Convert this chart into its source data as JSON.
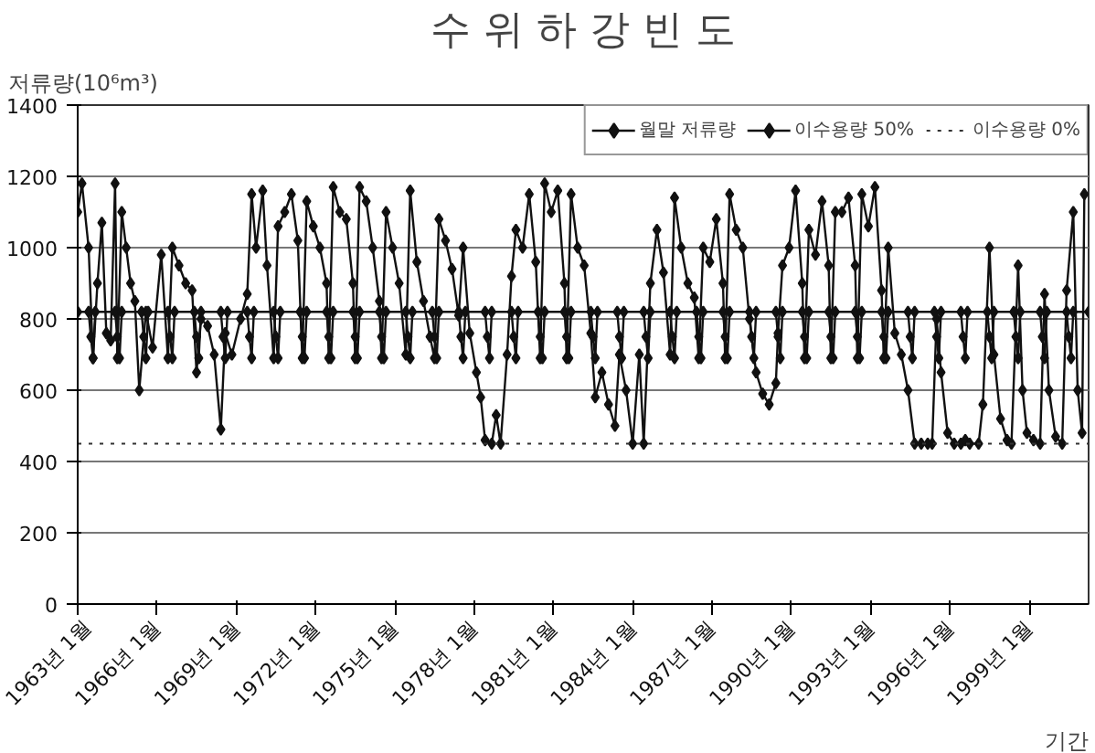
{
  "chart_data": {
    "type": "line",
    "title": "수 위 하 강 빈 도",
    "ylabel": "저류량(10⁶m³)",
    "xlabel": "기간",
    "xlim": [
      "1963-01",
      "2001-04"
    ],
    "xticks": [
      {
        "value": "1963-01",
        "label": "1963년 1월"
      },
      {
        "value": "1966-01",
        "label": "1966년 1월"
      },
      {
        "value": "1969-01",
        "label": "1969년 1월"
      },
      {
        "value": "1972-01",
        "label": "1972년 1월"
      },
      {
        "value": "1975-01",
        "label": "1975년 1월"
      },
      {
        "value": "1978-01",
        "label": "1978년 1월"
      },
      {
        "value": "1981-01",
        "label": "1981년 1월"
      },
      {
        "value": "1984-01",
        "label": "1984년 1월"
      },
      {
        "value": "1987-01",
        "label": "1987년 1월"
      },
      {
        "value": "1990-01",
        "label": "1990년 1월"
      },
      {
        "value": "1993-01",
        "label": "1993년 1월"
      },
      {
        "value": "1996-01",
        "label": "1996년 1월"
      },
      {
        "value": "1999-01",
        "label": "1999년 1월"
      }
    ],
    "ylim": [
      0,
      1400
    ],
    "yticks": [
      0,
      200,
      400,
      600,
      800,
      1000,
      1200,
      1400
    ],
    "grid": "y",
    "legend": "top right",
    "series": [
      {
        "name": "월말 저류량",
        "color": "#111111",
        "marker": "diamond",
        "line_style": "solid",
        "x": [
          "1963-01",
          "1963-03",
          "1963-06",
          "1963-08",
          "1963-10",
          "1963-12",
          "1964-02",
          "1964-04",
          "1964-06",
          "1964-07",
          "1964-09",
          "1964-11",
          "1965-01",
          "1965-03",
          "1965-05",
          "1965-08",
          "1965-11",
          "1966-03",
          "1966-06",
          "1966-08",
          "1966-11",
          "1967-02",
          "1967-05",
          "1967-07",
          "1967-09",
          "1967-12",
          "1968-03",
          "1968-06",
          "1968-08",
          "1968-11",
          "1969-03",
          "1969-06",
          "1969-08",
          "1969-10",
          "1970-01",
          "1970-03",
          "1970-06",
          "1970-08",
          "1970-11",
          "1971-02",
          "1971-05",
          "1971-07",
          "1971-09",
          "1971-12",
          "1972-03",
          "1972-06",
          "1972-07",
          "1972-09",
          "1972-12",
          "1973-03",
          "1973-06",
          "1973-07",
          "1973-09",
          "1973-12",
          "1974-03",
          "1974-06",
          "1974-07",
          "1974-09",
          "1974-12",
          "1975-03",
          "1975-06",
          "1975-08",
          "1975-11",
          "1976-02",
          "1976-05",
          "1976-07",
          "1976-09",
          "1976-12",
          "1977-03",
          "1977-06",
          "1977-08",
          "1977-11",
          "1978-02",
          "1978-04",
          "1978-06",
          "1978-09",
          "1978-11",
          "1979-01",
          "1979-04",
          "1979-06",
          "1979-08",
          "1979-11",
          "1980-02",
          "1980-05",
          "1980-07",
          "1980-09",
          "1980-12",
          "1981-03",
          "1981-06",
          "1981-07",
          "1981-09",
          "1981-12",
          "1982-03",
          "1982-06",
          "1982-08",
          "1982-11",
          "1983-02",
          "1983-05",
          "1983-07",
          "1983-10",
          "1984-01",
          "1984-04",
          "1984-06",
          "1984-09",
          "1984-12",
          "1985-03",
          "1985-06",
          "1985-08",
          "1985-11",
          "1986-02",
          "1986-05",
          "1986-07",
          "1986-09",
          "1986-12",
          "1987-03",
          "1987-06",
          "1987-07",
          "1987-09",
          "1987-12",
          "1988-03",
          "1988-06",
          "1988-09",
          "1988-12",
          "1989-03",
          "1989-06",
          "1989-07",
          "1989-09",
          "1989-12",
          "1990-03",
          "1990-06",
          "1990-07",
          "1990-09",
          "1990-12",
          "1991-03",
          "1991-06",
          "1991-07",
          "1991-09",
          "1991-12",
          "1992-03",
          "1992-06",
          "1992-07",
          "1992-09",
          "1992-12",
          "1993-03",
          "1993-06",
          "1993-07",
          "1993-09",
          "1993-12",
          "1994-03",
          "1994-06",
          "1994-09",
          "1994-12",
          "1995-03",
          "1995-05",
          "1995-07",
          "1995-09",
          "1995-12",
          "1996-03",
          "1996-06",
          "1996-08",
          "1996-10",
          "1997-02",
          "1997-04",
          "1997-07",
          "1997-09",
          "1997-12",
          "1998-03",
          "1998-05",
          "1998-08",
          "1998-10",
          "1998-12",
          "1999-03",
          "1999-06",
          "1999-08",
          "1999-10",
          "2000-01",
          "2000-04",
          "2000-06",
          "2000-09",
          "2000-11",
          "2001-01",
          "2001-02"
        ],
        "values": [
          1100,
          1180,
          1000,
          690,
          900,
          1070,
          760,
          740,
          1180,
          690,
          1100,
          1000,
          900,
          850,
          600,
          820,
          720,
          980,
          690,
          1000,
          950,
          900,
          880,
          650,
          800,
          780,
          700,
          490,
          760,
          700,
          800,
          870,
          1150,
          1000,
          1160,
          950,
          690,
          1060,
          1100,
          1150,
          1020,
          690,
          1130,
          1060,
          1000,
          900,
          690,
          1170,
          1100,
          1080,
          900,
          690,
          1170,
          1130,
          1000,
          850,
          690,
          1100,
          1000,
          900,
          700,
          1160,
          960,
          850,
          750,
          690,
          1080,
          1020,
          940,
          810,
          1000,
          760,
          650,
          580,
          460,
          450,
          530,
          450,
          700,
          920,
          1050,
          1000,
          1150,
          960,
          690,
          1180,
          1100,
          1160,
          900,
          690,
          1150,
          1000,
          950,
          760,
          580,
          650,
          560,
          500,
          700,
          600,
          450,
          700,
          450,
          900,
          1050,
          930,
          700,
          1140,
          1000,
          900,
          860,
          690,
          1000,
          960,
          1080,
          900,
          690,
          1150,
          1050,
          1000,
          800,
          650,
          590,
          560,
          620,
          760,
          950,
          1000,
          1160,
          900,
          690,
          1050,
          980,
          1130,
          950,
          690,
          1100,
          1100,
          1140,
          950,
          690,
          1150,
          1060,
          1170,
          880,
          690,
          1000,
          760,
          700,
          600,
          450,
          450,
          450,
          450,
          800,
          650,
          480,
          450,
          450,
          460,
          450,
          450,
          560,
          1000,
          700,
          520,
          460,
          450,
          950,
          600,
          480,
          460,
          450,
          870,
          600,
          470,
          450,
          880,
          1100,
          600,
          480,
          1150
        ]
      },
      {
        "name": "이수용량 50%",
        "color": "#111111",
        "marker": "diamond",
        "line_style": "solid",
        "x": [
          "1963-01",
          "1963-06",
          "1963-07",
          "1963-08",
          "1963-09",
          "1964-06",
          "1964-07",
          "1964-08",
          "1964-09",
          "1965-06",
          "1965-07",
          "1965-08",
          "1965-09",
          "1966-06",
          "1966-07",
          "1966-08",
          "1966-09",
          "1967-06",
          "1967-07",
          "1967-08",
          "1967-09",
          "1968-06",
          "1968-07",
          "1968-08",
          "1968-09",
          "1969-06",
          "1969-07",
          "1969-08",
          "1969-09",
          "1970-06",
          "1970-07",
          "1970-08",
          "1970-09",
          "1971-06",
          "1971-07",
          "1971-08",
          "1971-09",
          "1972-06",
          "1972-07",
          "1972-08",
          "1972-09",
          "1973-06",
          "1973-07",
          "1973-08",
          "1973-09",
          "1974-06",
          "1974-07",
          "1974-08",
          "1974-09",
          "1975-06",
          "1975-07",
          "1975-08",
          "1975-09",
          "1976-06",
          "1976-07",
          "1976-08",
          "1976-09",
          "1977-06",
          "1977-07",
          "1977-08",
          "1977-09",
          "1978-06",
          "1978-07",
          "1978-08",
          "1978-09",
          "1979-06",
          "1979-07",
          "1979-08",
          "1979-09",
          "1980-06",
          "1980-07",
          "1980-08",
          "1980-09",
          "1981-06",
          "1981-07",
          "1981-08",
          "1981-09",
          "1982-06",
          "1982-07",
          "1982-08",
          "1982-09",
          "1983-06",
          "1983-07",
          "1983-08",
          "1983-09",
          "1984-06",
          "1984-07",
          "1984-08",
          "1984-09",
          "1985-06",
          "1985-07",
          "1985-08",
          "1985-09",
          "1986-06",
          "1986-07",
          "1986-08",
          "1986-09",
          "1987-06",
          "1987-07",
          "1987-08",
          "1987-09",
          "1988-06",
          "1988-07",
          "1988-08",
          "1988-09",
          "1989-06",
          "1989-07",
          "1989-08",
          "1989-09",
          "1990-06",
          "1990-07",
          "1990-08",
          "1990-09",
          "1991-06",
          "1991-07",
          "1991-08",
          "1991-09",
          "1992-06",
          "1992-07",
          "1992-08",
          "1992-09",
          "1993-06",
          "1993-07",
          "1993-08",
          "1993-09",
          "1994-06",
          "1994-07",
          "1994-08",
          "1994-09",
          "1995-06",
          "1995-07",
          "1995-08",
          "1995-09",
          "1996-06",
          "1996-07",
          "1996-08",
          "1996-09",
          "1997-06",
          "1997-07",
          "1997-08",
          "1997-09",
          "1998-06",
          "1998-07",
          "1998-08",
          "1998-09",
          "1999-06",
          "1999-07",
          "1999-08",
          "1999-09",
          "2000-06",
          "2000-07",
          "2000-08",
          "2000-09",
          "2001-04"
        ],
        "values": [
          820,
          820,
          750,
          690,
          820,
          820,
          750,
          690,
          820,
          820,
          750,
          690,
          820,
          820,
          750,
          690,
          820,
          820,
          750,
          690,
          820,
          820,
          750,
          690,
          820,
          820,
          750,
          690,
          820,
          820,
          750,
          690,
          820,
          820,
          750,
          690,
          820,
          820,
          750,
          690,
          820,
          820,
          750,
          690,
          820,
          820,
          750,
          690,
          820,
          820,
          750,
          690,
          820,
          820,
          750,
          690,
          820,
          820,
          750,
          690,
          820,
          820,
          750,
          690,
          820,
          820,
          750,
          690,
          820,
          820,
          750,
          690,
          820,
          820,
          750,
          690,
          820,
          820,
          750,
          690,
          820,
          820,
          750,
          690,
          820,
          820,
          750,
          690,
          820,
          820,
          750,
          690,
          820,
          820,
          750,
          690,
          820,
          820,
          750,
          690,
          820,
          820,
          750,
          690,
          820,
          820,
          750,
          690,
          820,
          820,
          750,
          690,
          820,
          820,
          750,
          690,
          820,
          820,
          750,
          690,
          820,
          820,
          750,
          690,
          820,
          820,
          750,
          690,
          820,
          820,
          750,
          690,
          820,
          820,
          750,
          690,
          820,
          820,
          750,
          690,
          820,
          820,
          750,
          690,
          820,
          820,
          750,
          690,
          820,
          820,
          750,
          690,
          820,
          820
        ]
      },
      {
        "name": "이수용량 0%",
        "color": "#333333",
        "marker": "none",
        "line_style": "dotted",
        "x": [
          "1963-01",
          "2001-04"
        ],
        "values": [
          450,
          450
        ]
      }
    ]
  }
}
